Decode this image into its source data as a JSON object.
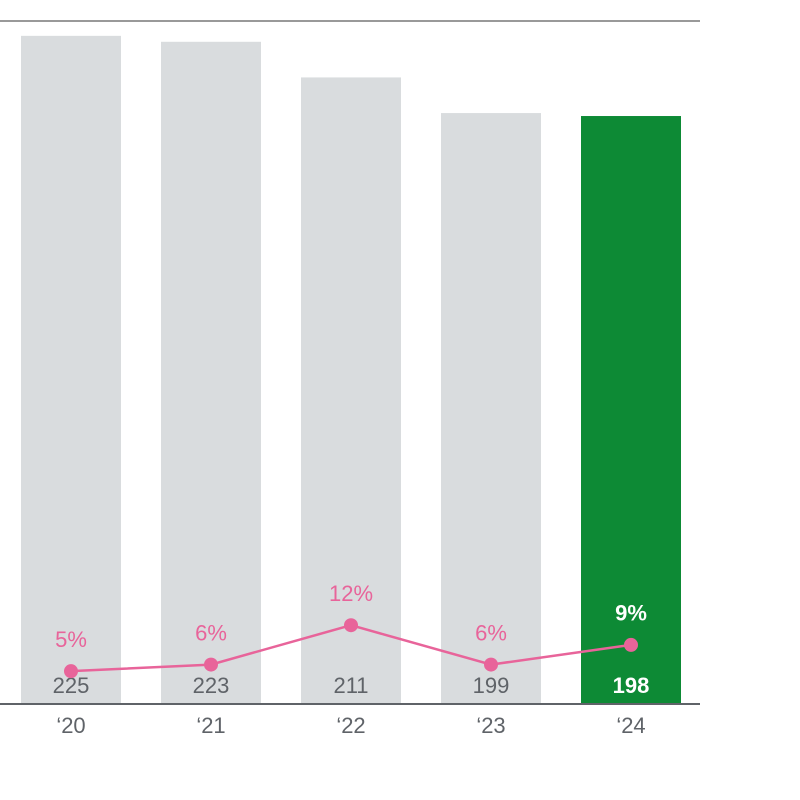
{
  "chart_data": {
    "type": "bar",
    "categories": [
      "‘20",
      "‘21",
      "‘22",
      "‘23",
      "‘24"
    ],
    "values": [
      225,
      223,
      211,
      199,
      198
    ],
    "colors": [
      "#d9dcde",
      "#d9dcde",
      "#d9dcde",
      "#d9dcde",
      "#0d8a35"
    ],
    "ylim": [
      0,
      230
    ],
    "line": {
      "type": "line",
      "values": [
        5,
        6,
        12,
        6,
        9
      ],
      "value_labels": [
        "5%",
        "6%",
        "12%",
        "6%",
        "9%"
      ],
      "color": "#e8649a"
    },
    "y2lim": [
      0,
      104
    ]
  }
}
